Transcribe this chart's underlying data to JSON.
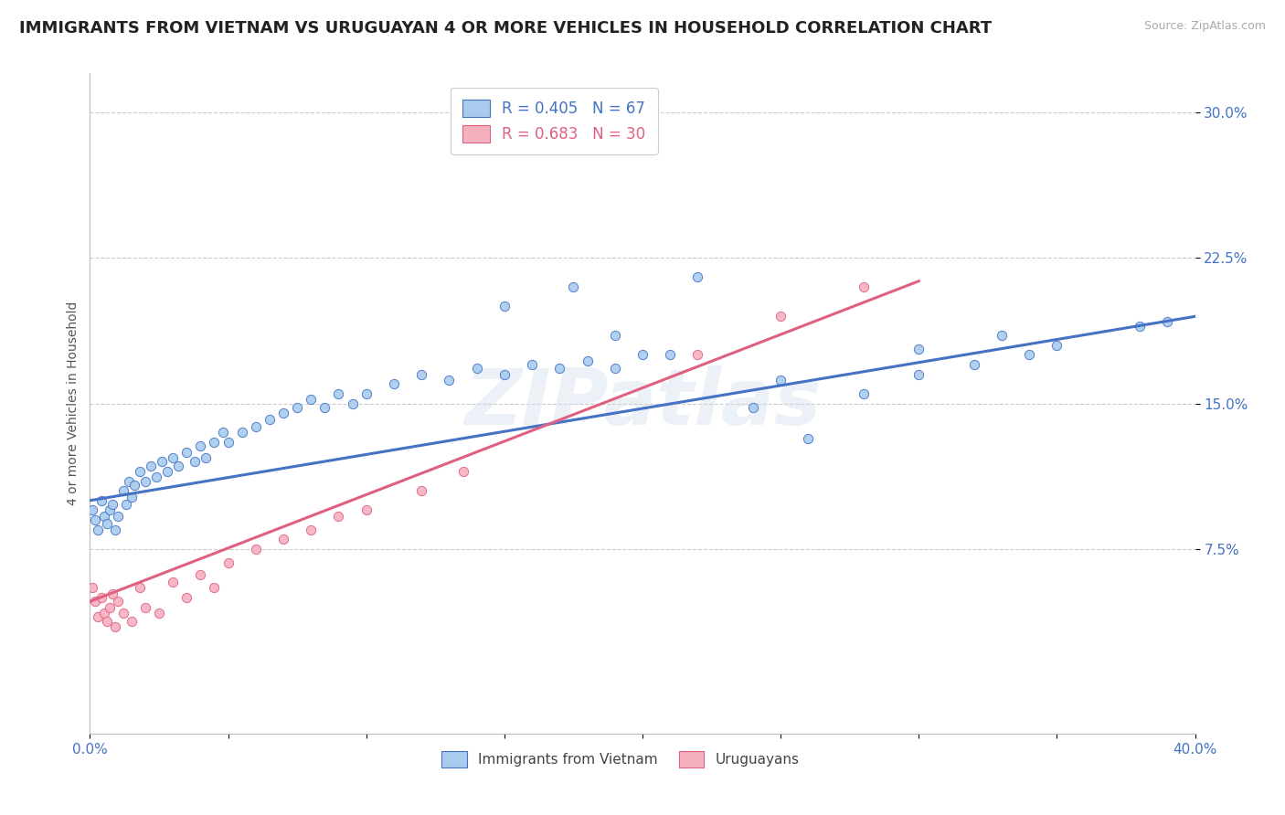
{
  "title": "IMMIGRANTS FROM VIETNAM VS URUGUAYAN 4 OR MORE VEHICLES IN HOUSEHOLD CORRELATION CHART",
  "source": "Source: ZipAtlas.com",
  "ylabel": "4 or more Vehicles in Household",
  "xlim": [
    0.0,
    0.4
  ],
  "ylim": [
    -0.02,
    0.32
  ],
  "blue_color": "#A8CBEE",
  "pink_color": "#F5B0C0",
  "blue_line_color": "#4472C4",
  "pink_line_color": "#E06080",
  "watermark": "ZIPatlas",
  "title_fontsize": 13,
  "axis_label_fontsize": 10,
  "tick_fontsize": 11,
  "blue_x": [
    0.001,
    0.002,
    0.003,
    0.004,
    0.005,
    0.006,
    0.007,
    0.008,
    0.009,
    0.01,
    0.012,
    0.013,
    0.014,
    0.015,
    0.016,
    0.018,
    0.02,
    0.022,
    0.024,
    0.026,
    0.028,
    0.03,
    0.032,
    0.035,
    0.038,
    0.04,
    0.042,
    0.045,
    0.048,
    0.05,
    0.055,
    0.06,
    0.065,
    0.07,
    0.075,
    0.08,
    0.085,
    0.09,
    0.095,
    0.1,
    0.11,
    0.12,
    0.13,
    0.14,
    0.15,
    0.16,
    0.17,
    0.18,
    0.19,
    0.2,
    0.15,
    0.175,
    0.19,
    0.21,
    0.22,
    0.25,
    0.28,
    0.3,
    0.32,
    0.34,
    0.24,
    0.26,
    0.3,
    0.33,
    0.35,
    0.38,
    0.39
  ],
  "blue_y": [
    0.095,
    0.09,
    0.085,
    0.1,
    0.092,
    0.088,
    0.095,
    0.098,
    0.085,
    0.092,
    0.105,
    0.098,
    0.11,
    0.102,
    0.108,
    0.115,
    0.11,
    0.118,
    0.112,
    0.12,
    0.115,
    0.122,
    0.118,
    0.125,
    0.12,
    0.128,
    0.122,
    0.13,
    0.135,
    0.13,
    0.135,
    0.138,
    0.142,
    0.145,
    0.148,
    0.152,
    0.148,
    0.155,
    0.15,
    0.155,
    0.16,
    0.165,
    0.162,
    0.168,
    0.165,
    0.17,
    0.168,
    0.172,
    0.168,
    0.175,
    0.2,
    0.21,
    0.185,
    0.175,
    0.215,
    0.162,
    0.155,
    0.165,
    0.17,
    0.175,
    0.148,
    0.132,
    0.178,
    0.185,
    0.18,
    0.19,
    0.192
  ],
  "pink_x": [
    0.001,
    0.002,
    0.003,
    0.004,
    0.005,
    0.006,
    0.007,
    0.008,
    0.009,
    0.01,
    0.012,
    0.015,
    0.018,
    0.02,
    0.025,
    0.03,
    0.035,
    0.04,
    0.045,
    0.05,
    0.06,
    0.07,
    0.08,
    0.09,
    0.1,
    0.12,
    0.135,
    0.22,
    0.25,
    0.28
  ],
  "pink_y": [
    0.055,
    0.048,
    0.04,
    0.05,
    0.042,
    0.038,
    0.045,
    0.052,
    0.035,
    0.048,
    0.042,
    0.038,
    0.055,
    0.045,
    0.042,
    0.058,
    0.05,
    0.062,
    0.055,
    0.068,
    0.075,
    0.08,
    0.085,
    0.092,
    0.095,
    0.105,
    0.115,
    0.175,
    0.195,
    0.21
  ]
}
